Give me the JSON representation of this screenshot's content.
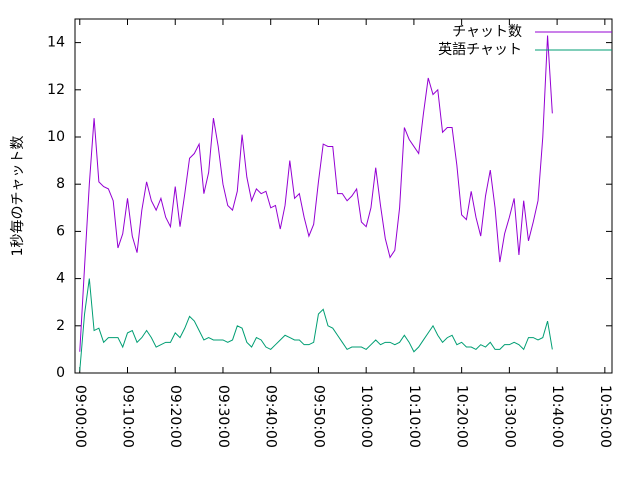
{
  "chart_data": {
    "type": "line",
    "y_label": "1秒毎のチャット数",
    "x": [
      "09:00:00",
      "09:01:00",
      "09:02:00",
      "09:03:00",
      "09:04:00",
      "09:05:00",
      "09:06:00",
      "09:07:00",
      "09:08:00",
      "09:09:00",
      "09:10:00",
      "09:11:00",
      "09:12:00",
      "09:13:00",
      "09:14:00",
      "09:15:00",
      "09:16:00",
      "09:17:00",
      "09:18:00",
      "09:19:00",
      "09:20:00",
      "09:21:00",
      "09:22:00",
      "09:23:00",
      "09:24:00",
      "09:25:00",
      "09:26:00",
      "09:27:00",
      "09:28:00",
      "09:29:00",
      "09:30:00",
      "09:31:00",
      "09:32:00",
      "09:33:00",
      "09:34:00",
      "09:35:00",
      "09:36:00",
      "09:37:00",
      "09:38:00",
      "09:39:00",
      "09:40:00",
      "09:41:00",
      "09:42:00",
      "09:43:00",
      "09:44:00",
      "09:45:00",
      "09:46:00",
      "09:47:00",
      "09:48:00",
      "09:49:00",
      "09:50:00",
      "09:51:00",
      "09:52:00",
      "09:53:00",
      "09:54:00",
      "09:55:00",
      "09:56:00",
      "09:57:00",
      "09:58:00",
      "09:59:00",
      "10:00:00",
      "10:01:00",
      "10:02:00",
      "10:03:00",
      "10:04:00",
      "10:05:00",
      "10:06:00",
      "10:07:00",
      "10:08:00",
      "10:09:00",
      "10:10:00",
      "10:11:00",
      "10:12:00",
      "10:13:00",
      "10:14:00",
      "10:15:00",
      "10:16:00",
      "10:17:00",
      "10:18:00",
      "10:19:00",
      "10:20:00",
      "10:21:00",
      "10:22:00",
      "10:23:00",
      "10:24:00",
      "10:25:00",
      "10:26:00",
      "10:27:00",
      "10:28:00",
      "10:29:00",
      "10:30:00",
      "10:31:00",
      "10:32:00",
      "10:33:00",
      "10:34:00",
      "10:35:00",
      "10:36:00",
      "10:37:00",
      "10:38:00",
      "10:39:00"
    ],
    "series": [
      {
        "name": "チャット数",
        "color": "#9400d3",
        "values": [
          0.9,
          4.5,
          8,
          10.8,
          8.1,
          7.9,
          7.8,
          7.3,
          5.3,
          5.9,
          7.4,
          5.8,
          5.1,
          6.9,
          8.1,
          7.3,
          6.9,
          7.4,
          6.6,
          6.2,
          7.9,
          6.2,
          7.6,
          9.1,
          9.3,
          9.7,
          7.6,
          8.5,
          10.8,
          9.6,
          8,
          7.1,
          6.9,
          7.7,
          10.1,
          8.3,
          7.3,
          7.8,
          7.6,
          7.7,
          7,
          7.1,
          6.1,
          7.1,
          9,
          7.4,
          7.6,
          6.6,
          5.8,
          6.3,
          8.1,
          9.7,
          9.6,
          9.6,
          7.6,
          7.6,
          7.3,
          7.5,
          7.8,
          6.4,
          6.2,
          7,
          8.7,
          7.1,
          5.7,
          4.9,
          5.2,
          7,
          10.4,
          9.9,
          9.6,
          9.3,
          11,
          12.5,
          11.8,
          12,
          10.2,
          10.4,
          10.4,
          8.8,
          6.7,
          6.5,
          7.7,
          6.6,
          5.8,
          7.5,
          8.6,
          7,
          4.7,
          5.9,
          6.6,
          7.4,
          5,
          7.3,
          5.6,
          6.4,
          7.3,
          10,
          14.3,
          11
        ]
      },
      {
        "name": "英語チャット",
        "color": "#009e73",
        "values": [
          0.1,
          2.5,
          4,
          1.8,
          1.9,
          1.3,
          1.5,
          1.5,
          1.5,
          1.1,
          1.7,
          1.8,
          1.3,
          1.5,
          1.8,
          1.5,
          1.1,
          1.2,
          1.3,
          1.3,
          1.7,
          1.5,
          1.9,
          2.4,
          2.2,
          1.8,
          1.4,
          1.5,
          1.4,
          1.4,
          1.4,
          1.3,
          1.4,
          2,
          1.9,
          1.3,
          1.1,
          1.5,
          1.4,
          1.1,
          1,
          1.2,
          1.4,
          1.6,
          1.5,
          1.4,
          1.4,
          1.2,
          1.2,
          1.3,
          2.5,
          2.7,
          2,
          1.9,
          1.6,
          1.3,
          1,
          1.1,
          1.1,
          1.1,
          1,
          1.2,
          1.4,
          1.2,
          1.3,
          1.3,
          1.2,
          1.3,
          1.6,
          1.3,
          0.9,
          1.1,
          1.4,
          1.7,
          2,
          1.6,
          1.3,
          1.5,
          1.6,
          1.2,
          1.3,
          1.1,
          1.1,
          1,
          1.2,
          1.1,
          1.3,
          1,
          1,
          1.2,
          1.2,
          1.3,
          1.2,
          1,
          1.5,
          1.5,
          1.4,
          1.5,
          2.2,
          1
        ]
      }
    ],
    "xlim": [
      "08:59:00",
      "10:51:30"
    ],
    "xticks": [
      "09:00:00",
      "09:10:00",
      "09:20:00",
      "09:30:00",
      "09:40:00",
      "09:50:00",
      "10:00:00",
      "10:10:00",
      "10:20:00",
      "10:30:00",
      "10:40:00",
      "10:50:00"
    ],
    "ylim": [
      0,
      15
    ],
    "yticks": [
      0,
      2,
      4,
      6,
      8,
      10,
      12,
      14
    ],
    "legend": "top-right"
  }
}
